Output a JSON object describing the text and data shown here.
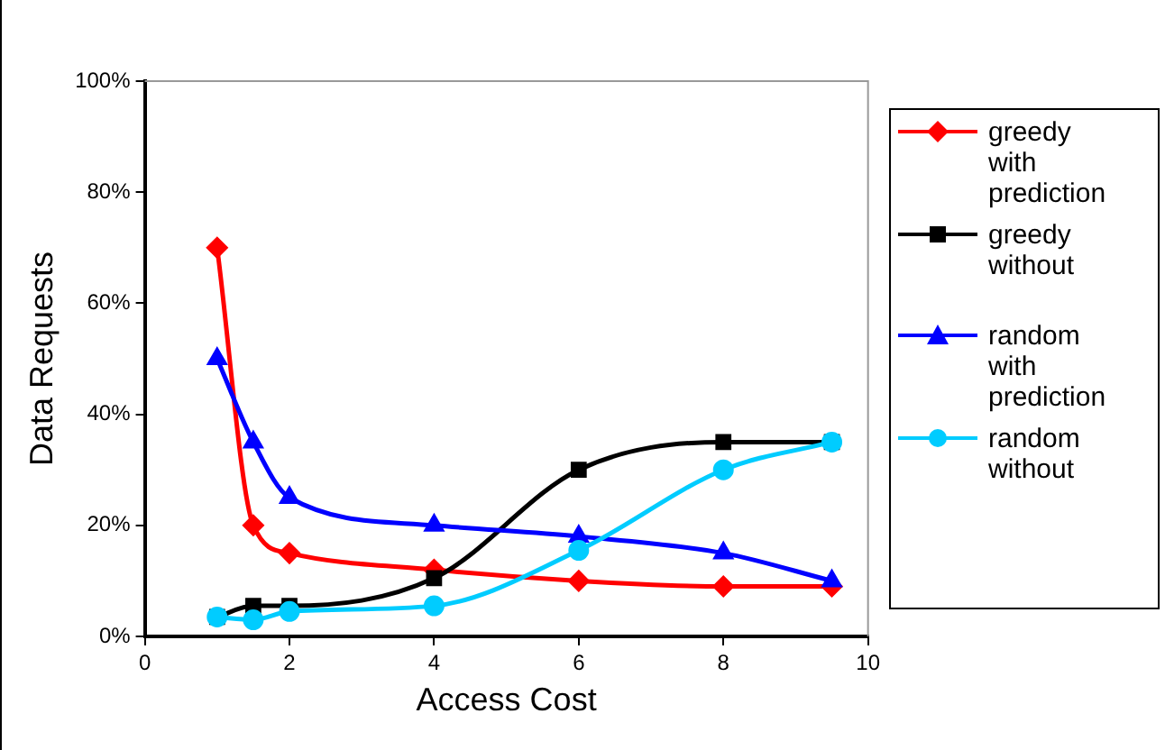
{
  "chart_data": {
    "type": "line",
    "xlabel": "Access Cost",
    "ylabel": "Data Requests",
    "x": [
      1,
      1.5,
      2,
      4,
      6,
      8,
      9.5
    ],
    "series": [
      {
        "name": "greedy with prediction",
        "color": "#ff0000",
        "marker": "diamond",
        "values": [
          70,
          20,
          15,
          12,
          10,
          9,
          9
        ]
      },
      {
        "name": "greedy without",
        "color": "#000000",
        "marker": "square",
        "values": [
          3.5,
          5.5,
          5.5,
          10.5,
          30,
          35,
          35
        ]
      },
      {
        "name": "random with prediction",
        "color": "#0000ff",
        "marker": "triangle",
        "values": [
          50,
          35,
          25,
          20,
          18,
          15,
          10
        ]
      },
      {
        "name": "random without",
        "color": "#00ccff",
        "marker": "circle",
        "values": [
          3.5,
          3,
          4.5,
          5.5,
          15.5,
          30,
          35
        ]
      }
    ],
    "xlim": [
      0,
      10
    ],
    "xticks": [
      0,
      2,
      4,
      6,
      8,
      10
    ],
    "ylim": [
      0,
      100
    ],
    "yticks": [
      {
        "value": 0,
        "label": "0%"
      },
      {
        "value": 20,
        "label": "20%"
      },
      {
        "value": 40,
        "label": "40%"
      },
      {
        "value": 60,
        "label": "60%"
      },
      {
        "value": 80,
        "label": "80%"
      },
      {
        "value": 100,
        "label": "100%"
      }
    ],
    "grid": false,
    "legend": "right",
    "line_style": "solid"
  }
}
